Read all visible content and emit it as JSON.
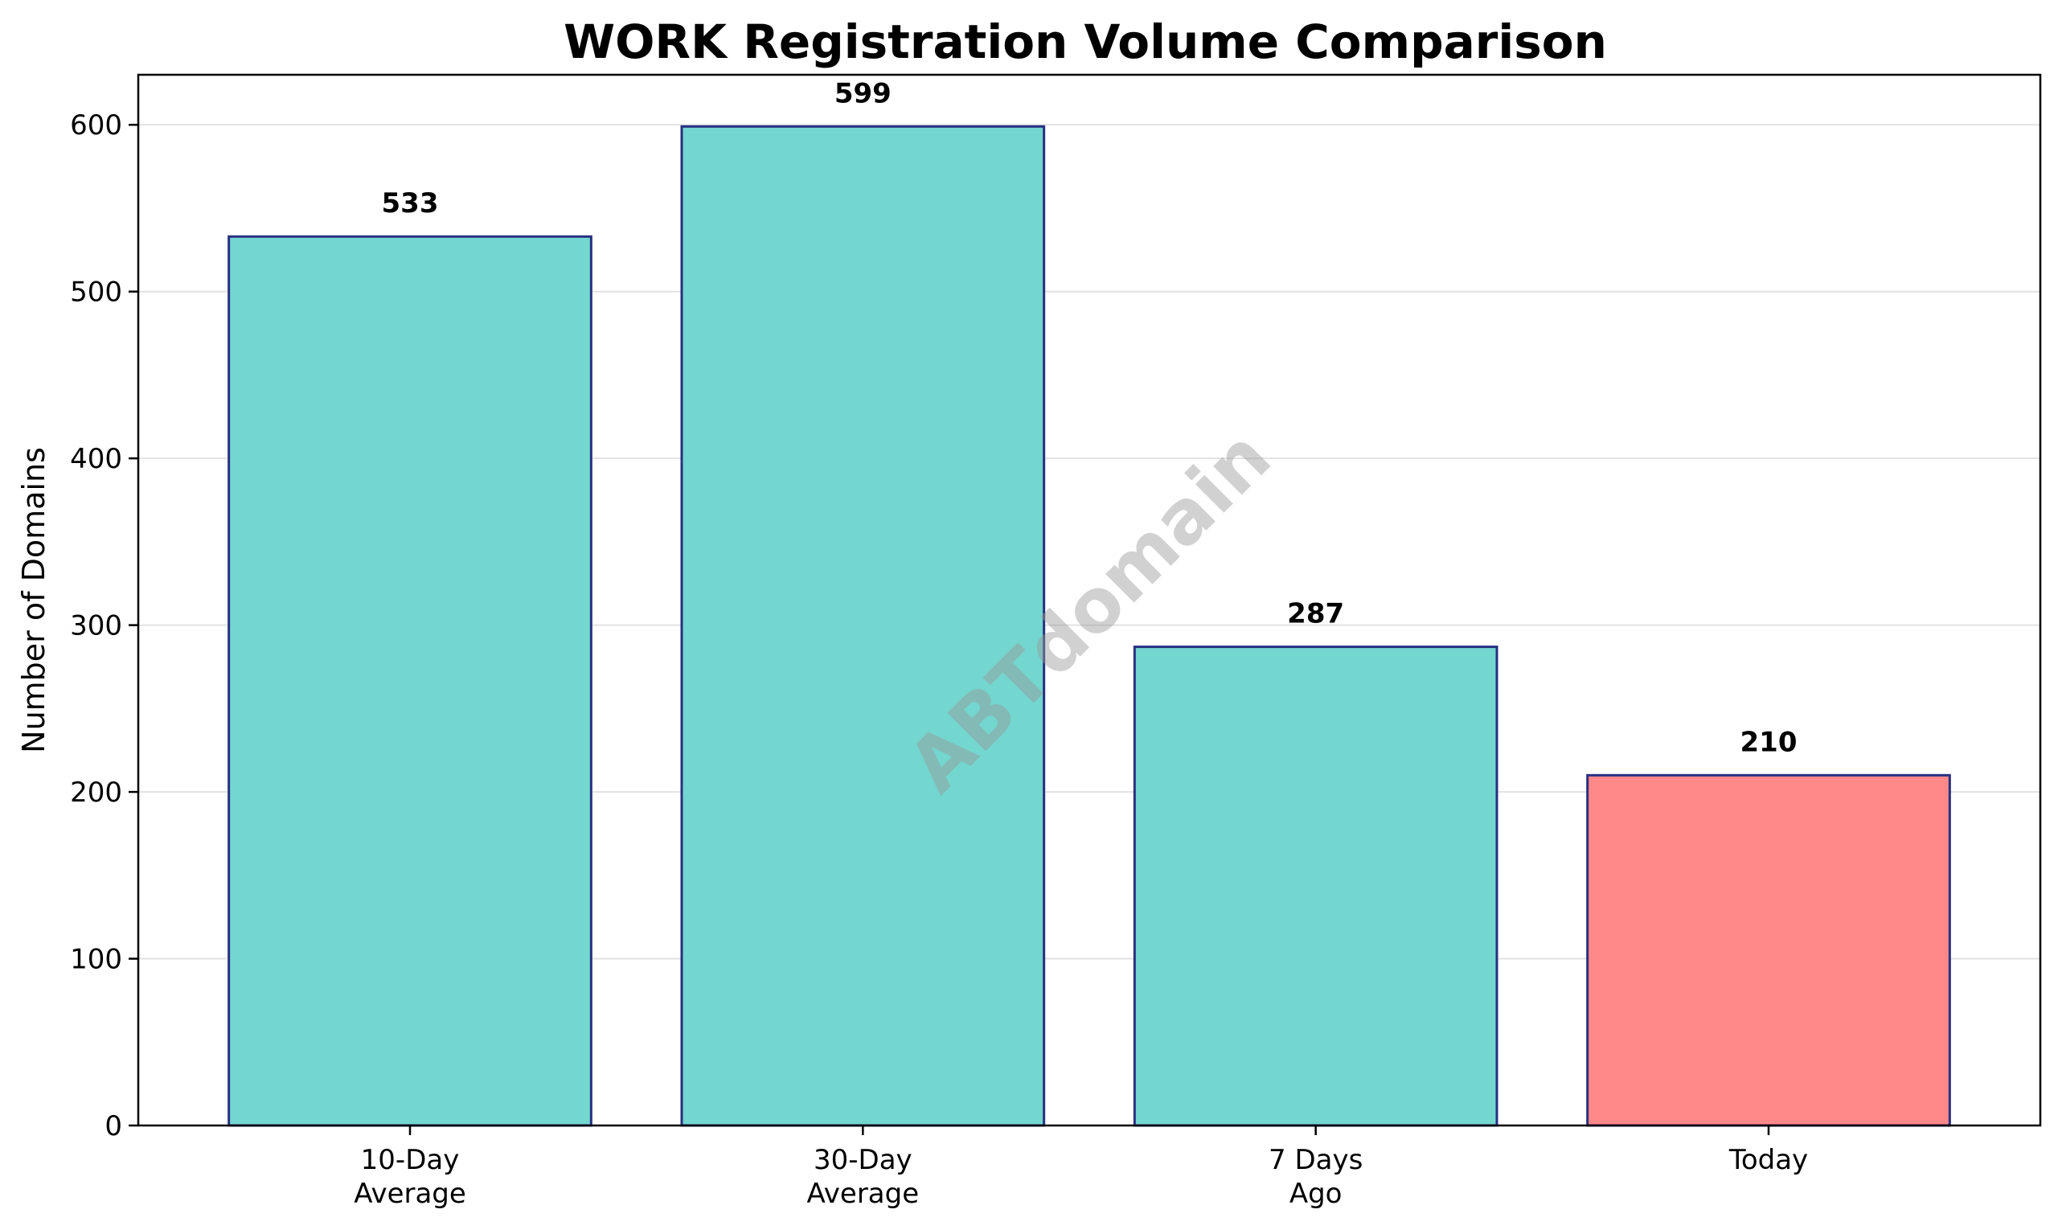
{
  "chart_data": {
    "type": "bar",
    "title": "WORK Registration Volume Comparison",
    "xlabel": "",
    "ylabel": "Number of Domains",
    "categories": [
      [
        "10-Day",
        "Average"
      ],
      [
        "30-Day",
        "Average"
      ],
      [
        "7 Days",
        "Ago"
      ],
      [
        "Today"
      ]
    ],
    "values": [
      533,
      599,
      287,
      210
    ],
    "data_labels": [
      "533",
      "599",
      "287",
      "210"
    ],
    "bar_colors": [
      "#73d6cf",
      "#73d6cf",
      "#73d6cf",
      "#ff8888"
    ],
    "edge_color": "#283080",
    "ylim": [
      0,
      630
    ],
    "yticks": [
      0,
      100,
      200,
      300,
      400,
      500,
      600
    ],
    "grid": "y",
    "legend": "none",
    "watermark": "ABTdomain"
  }
}
